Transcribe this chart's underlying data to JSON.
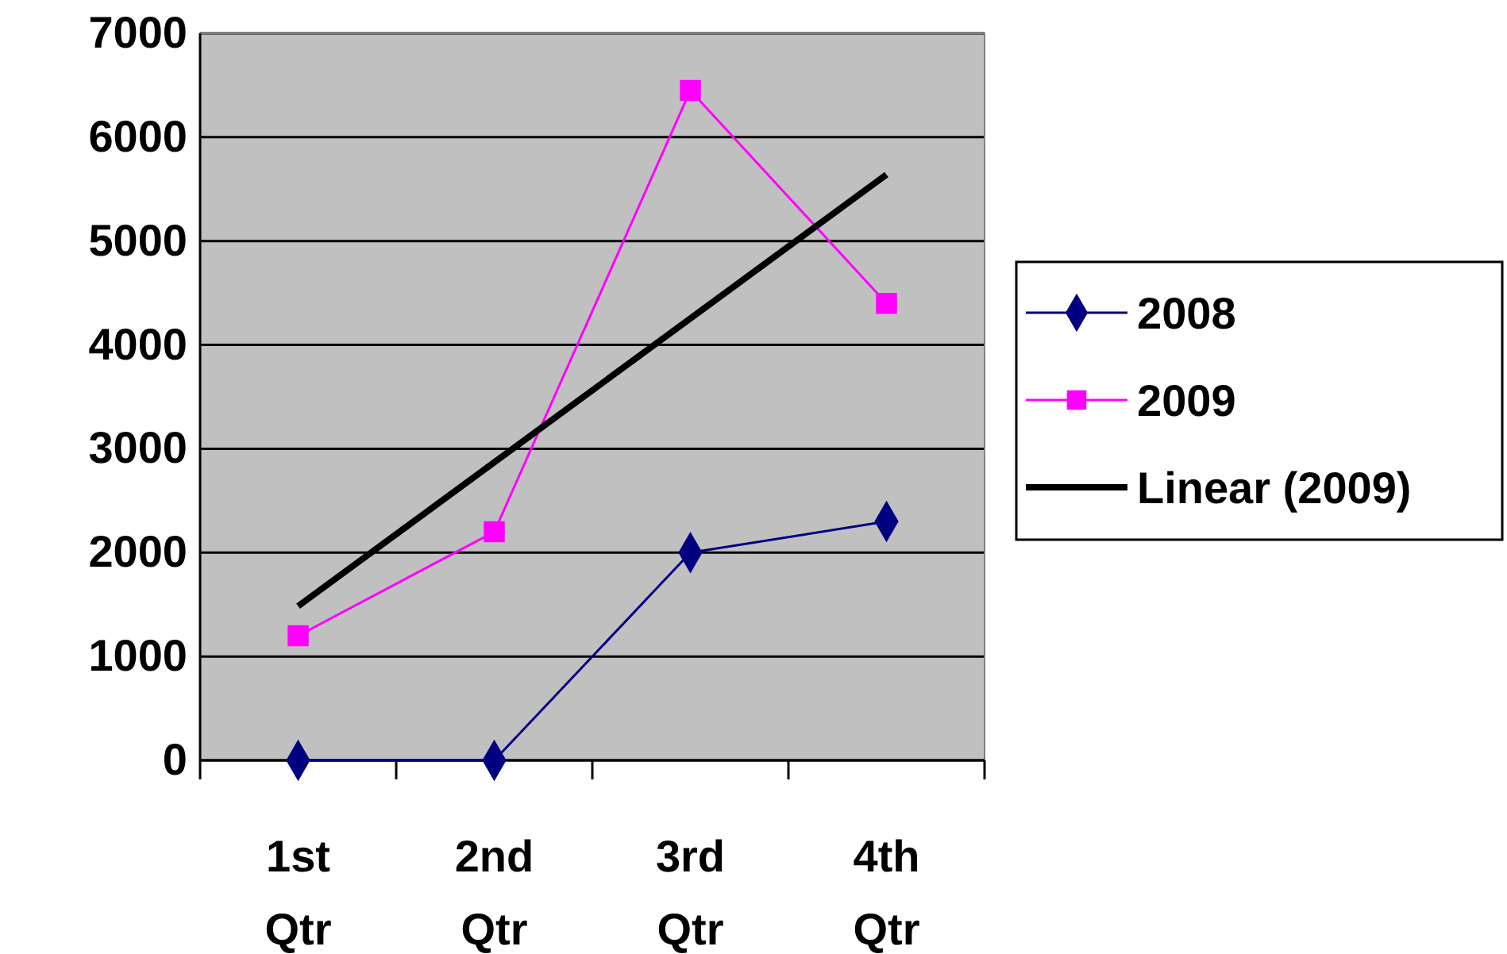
{
  "chart_data": {
    "type": "line",
    "categories": [
      "1st Qtr",
      "2nd Qtr",
      "3rd Qtr",
      "4th Qtr"
    ],
    "series": [
      {
        "name": "2008",
        "color": "#000080",
        "marker": "diamond",
        "values": [
          0,
          0,
          2000,
          2300
        ]
      },
      {
        "name": "2009",
        "color": "#ff00ff",
        "marker": "square",
        "values": [
          1200,
          2200,
          6450,
          4400
        ]
      },
      {
        "name": "Linear (2009)",
        "color": "#000000",
        "marker": "none",
        "values": [
          1485,
          2870,
          4255,
          5640
        ]
      }
    ],
    "ylim": [
      0,
      7000
    ],
    "yticks": [
      0,
      1000,
      2000,
      3000,
      4000,
      5000,
      6000,
      7000
    ],
    "grid": "y",
    "legend": "right"
  }
}
